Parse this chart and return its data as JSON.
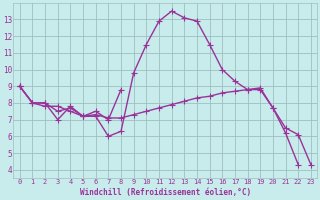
{
  "background_color": "#c8ecec",
  "grid_color": "#9fbfbf",
  "line_color": "#993399",
  "xlim": [
    -0.5,
    23.5
  ],
  "ylim": [
    3.5,
    14.0
  ],
  "yticks": [
    4,
    5,
    6,
    7,
    8,
    9,
    10,
    11,
    12,
    13
  ],
  "xticks": [
    0,
    1,
    2,
    3,
    4,
    5,
    6,
    7,
    8,
    9,
    10,
    11,
    12,
    13,
    14,
    15,
    16,
    17,
    18,
    19,
    20,
    21,
    22,
    23
  ],
  "xlabel": "Windchill (Refroidissement éolien,°C)",
  "line1_x": [
    0,
    1,
    2,
    3,
    4,
    5,
    6,
    7,
    8,
    9,
    10,
    11,
    12,
    13,
    14,
    15,
    16,
    17,
    18,
    19,
    20,
    21,
    22,
    23
  ],
  "line1_y": [
    9.0,
    8.0,
    8.0,
    7.5,
    7.7,
    7.2,
    7.3,
    7.1,
    7.1,
    7.3,
    7.5,
    7.7,
    7.9,
    8.1,
    8.3,
    8.4,
    8.6,
    8.7,
    8.8,
    8.9,
    7.7,
    6.5,
    6.1,
    4.3
  ],
  "line2_x": [
    0,
    1,
    2,
    3,
    4,
    5,
    6,
    7,
    8,
    9,
    10,
    11,
    12,
    13,
    14,
    15,
    16,
    17,
    18,
    19,
    20,
    21,
    22
  ],
  "line2_y": [
    9.0,
    8.0,
    8.0,
    7.0,
    7.8,
    7.2,
    7.2,
    6.0,
    6.3,
    9.8,
    11.5,
    12.9,
    13.5,
    13.1,
    12.9,
    11.5,
    10.0,
    9.3,
    8.8,
    8.8,
    7.7,
    6.2,
    4.3
  ],
  "line3_x": [
    0,
    1,
    2,
    3,
    4,
    5,
    6,
    7,
    8
  ],
  "line3_y": [
    9.0,
    8.0,
    7.8,
    7.8,
    7.5,
    7.2,
    7.5,
    7.0,
    8.8
  ],
  "marker": "+",
  "markersize": 4,
  "linewidth": 1.0
}
